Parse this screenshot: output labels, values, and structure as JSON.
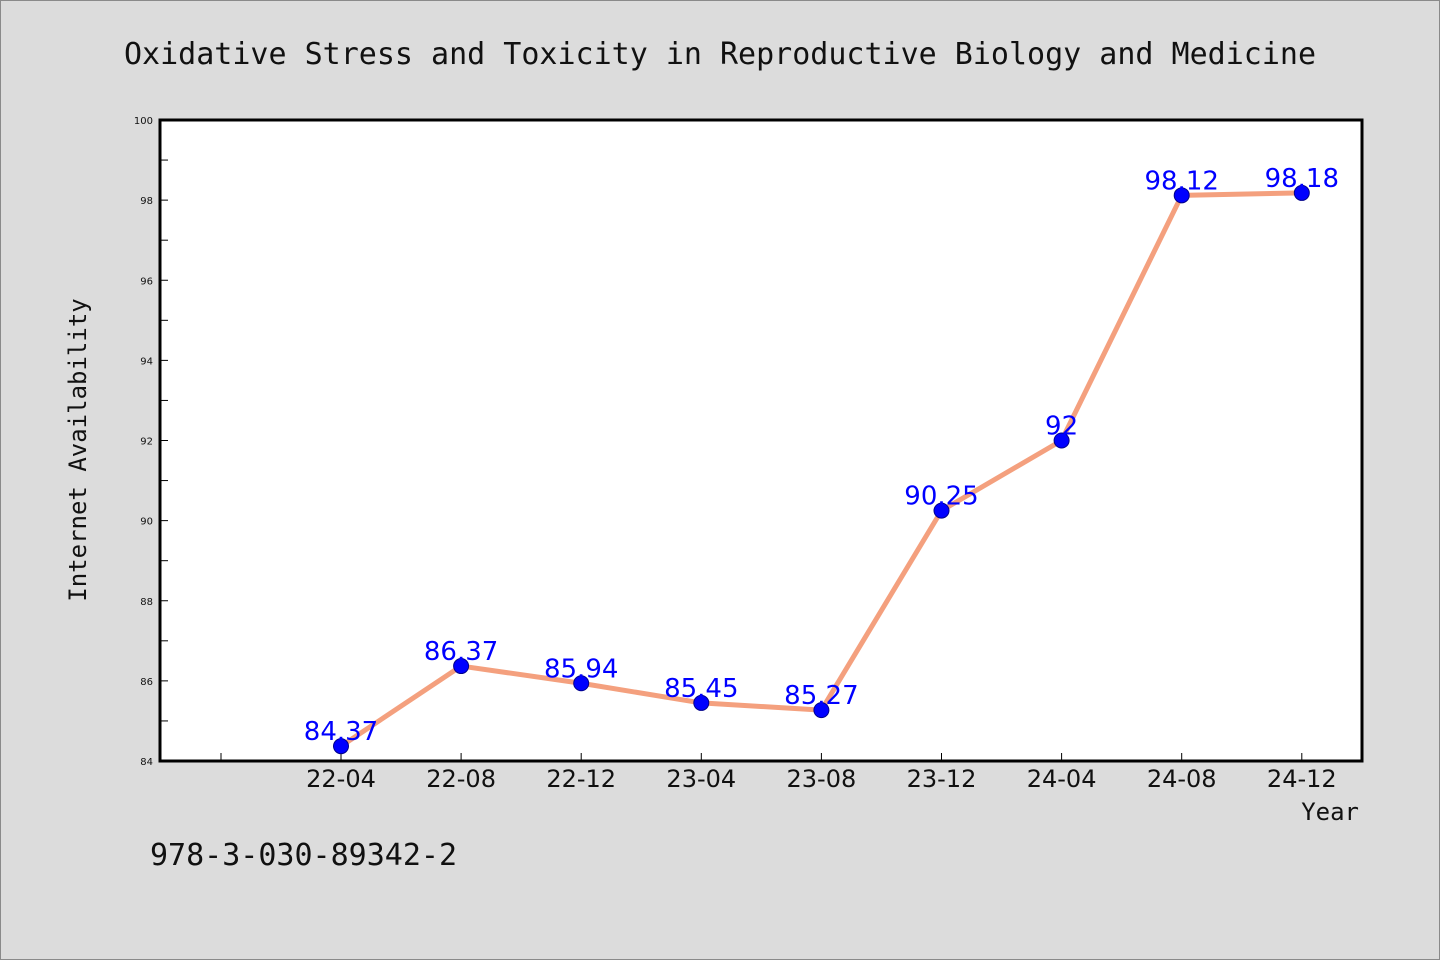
{
  "footer_text": "978-3-030-89342-2",
  "chart_data": {
    "type": "line",
    "title": "Oxidative Stress and Toxicity in Reproductive Biology and Medicine",
    "xlabel": "Year",
    "ylabel": "Internet Availability",
    "categories": [
      "22-04",
      "22-08",
      "22-12",
      "23-04",
      "23-08",
      "23-12",
      "24-04",
      "24-08",
      "24-12"
    ],
    "x_tick_labels": [
      "22-04",
      "22-08",
      "22-12",
      "23-04",
      "23-08",
      "23-12",
      "24-04",
      "24-08",
      "24-12"
    ],
    "values": [
      84.37,
      86.37,
      85.94,
      85.45,
      85.27,
      90.25,
      92,
      98.12,
      98.18
    ],
    "data_labels": [
      "84.37",
      "86.37",
      "85.94",
      "85.45",
      "85.27",
      "90.25",
      "92",
      "98.12",
      "98.18"
    ],
    "ylim": [
      84,
      100
    ],
    "y_ticks": [
      84,
      86,
      88,
      90,
      92,
      94,
      96,
      98,
      100
    ],
    "y_tick_labels": [
      "84",
      "86",
      "88",
      "90",
      "92",
      "94",
      "96",
      "98",
      "100"
    ],
    "grid": false,
    "line_color": "#f4a07e",
    "marker_color": "#0000ff",
    "label_color": "#0000ff",
    "background_color": "#dcdcdc"
  }
}
